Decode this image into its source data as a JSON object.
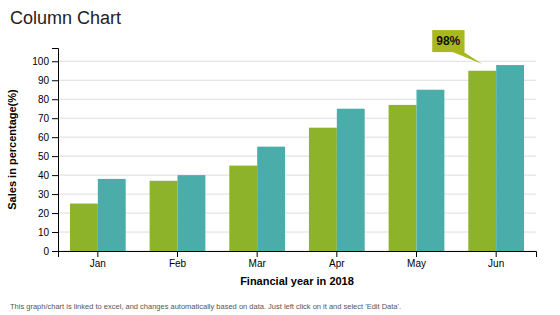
{
  "chart_data": {
    "type": "bar",
    "title": "Column Chart",
    "x_label": "Financial year in 2018",
    "y_label": "Sales in percentage(%)",
    "categories": [
      "Jan",
      "Feb",
      "Mar",
      "Apr",
      "May",
      "Jun"
    ],
    "series": [
      {
        "color": "#8db32a",
        "values": [
          25,
          37,
          45,
          65,
          77,
          95
        ]
      },
      {
        "color": "#4aadaa",
        "values": [
          38,
          40,
          55,
          75,
          85,
          98
        ]
      }
    ],
    "ylim": [
      0,
      107
    ],
    "yticks": [
      0,
      10,
      20,
      30,
      40,
      50,
      60,
      70,
      80,
      90,
      100
    ],
    "grid": true,
    "annotations": [
      {
        "text": "98%",
        "category": "Jun",
        "value": 98,
        "color": "#aab820"
      }
    ],
    "footnote": "This graph/chart is linked to excel, and changes automatically based on data. Just left click on it and select 'Edit Data'."
  }
}
